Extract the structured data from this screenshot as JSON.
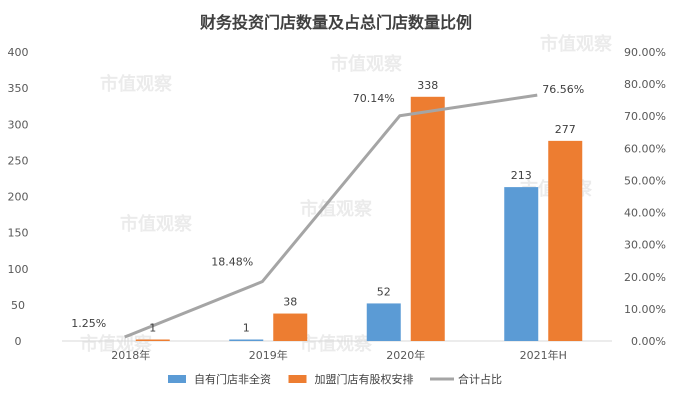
{
  "chart_data": {
    "type": "bar",
    "title": "财务投资门店数量及占总门店数量比例",
    "categories": [
      "2018年",
      "2019年",
      "2020年",
      "2021年H"
    ],
    "series": [
      {
        "name": "自有门店非全资",
        "type": "bar",
        "axis": "left",
        "color": "#5B9BD5",
        "values": [
          0,
          1,
          52,
          213
        ],
        "labels": [
          "",
          "1",
          "52",
          "213"
        ]
      },
      {
        "name": "加盟门店有股权安排",
        "type": "bar",
        "axis": "left",
        "color": "#ED7D31",
        "values": [
          1,
          38,
          338,
          277
        ],
        "labels": [
          "1",
          "38",
          "338",
          "277"
        ]
      },
      {
        "name": "合计占比",
        "type": "line",
        "axis": "right",
        "color": "#A5A5A5",
        "values": [
          1.25,
          18.48,
          70.14,
          76.56
        ],
        "labels": [
          "1.25%",
          "18.48%",
          "70.14%",
          "76.56%"
        ]
      }
    ],
    "y_left": {
      "min": 0,
      "max": 400,
      "step": 50,
      "ticks": [
        "0",
        "50",
        "100",
        "150",
        "200",
        "250",
        "300",
        "350",
        "400"
      ]
    },
    "y_right": {
      "min": 0,
      "max": 90,
      "step": 10,
      "ticks": [
        "0.00%",
        "10.00%",
        "20.00%",
        "30.00%",
        "40.00%",
        "50.00%",
        "60.00%",
        "70.00%",
        "80.00%",
        "90.00%"
      ]
    },
    "grid": false,
    "legend_position": "bottom"
  },
  "watermark": {
    "text": "市值观察"
  }
}
